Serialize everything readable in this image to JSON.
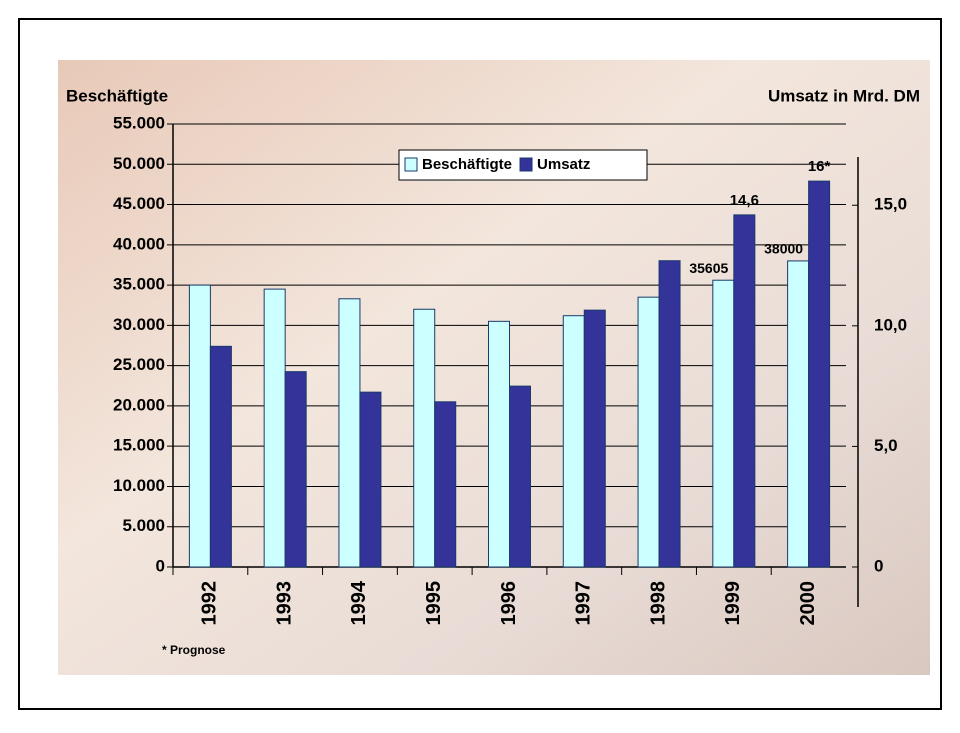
{
  "chart_data": {
    "type": "bar",
    "y_label": "Beschäftigte",
    "y2_label": "Umsatz in Mrd. DM",
    "footnote": "* Prognose",
    "categories": [
      "1992",
      "1993",
      "1994",
      "1995",
      "1996",
      "1997",
      "1998",
      "1999",
      "2000"
    ],
    "series": [
      {
        "name": "Beschäftigte",
        "color": "#ccffff",
        "values": [
          35000,
          34500,
          33300,
          32000,
          30500,
          31200,
          33500,
          35605,
          38000
        ],
        "value_labels": [
          null,
          null,
          null,
          null,
          null,
          null,
          null,
          "35605",
          "38000"
        ]
      },
      {
        "name": "Umsatz",
        "color": "#333399",
        "axis": "y2",
        "values": [
          9.15,
          8.1,
          7.25,
          6.85,
          7.5,
          10.65,
          12.7,
          14.6,
          16
        ],
        "value_labels": [
          null,
          null,
          null,
          null,
          null,
          null,
          null,
          "14,6",
          "16*"
        ]
      }
    ],
    "ylim": [
      0,
      55000
    ],
    "yticks": [
      0,
      {
        "value": 5000,
        "label": "5.000"
      },
      {
        "value": 10000,
        "label": "10.000"
      },
      {
        "value": 15000,
        "label": "15.000"
      },
      {
        "value": 20000,
        "label": "20.000"
      },
      {
        "value": 25000,
        "label": "25.000"
      },
      {
        "value": 30000,
        "label": "30.000"
      },
      {
        "value": 35000,
        "label": "35.000"
      },
      {
        "value": 40000,
        "label": "40.000"
      },
      {
        "value": 45000,
        "label": "45.000"
      },
      {
        "value": 50000,
        "label": "50.000"
      },
      {
        "value": 55000,
        "label": "55.000"
      }
    ],
    "y2lim": [
      0,
      17
    ],
    "y2ticks": [
      0,
      {
        "value": 5,
        "label": "5,0"
      },
      {
        "value": 10,
        "label": "10,0"
      },
      {
        "value": 15,
        "label": "15,0"
      }
    ],
    "grid": true,
    "legend": "top"
  }
}
